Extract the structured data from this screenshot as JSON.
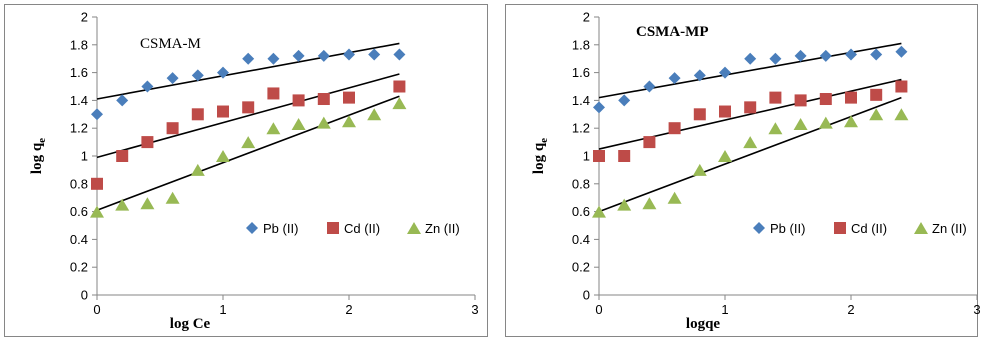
{
  "chart_data": [
    {
      "type": "scatter",
      "title": "CSMA-M",
      "title_bold": false,
      "xlabel": "log Ce",
      "ylabel": "log q",
      "ylabel_sub": "e",
      "xlim": [
        0,
        3
      ],
      "ylim": [
        0,
        2
      ],
      "xticks": [
        "0",
        "1",
        "2",
        "3"
      ],
      "yticks": [
        "0",
        "0.2",
        "0.4",
        "0.6",
        "0.8",
        "1",
        "1.2",
        "1.4",
        "1.6",
        "1.8",
        "2"
      ],
      "grid": false,
      "legend": "center-right",
      "series": [
        {
          "name": "Pb (II)",
          "marker": "diamond",
          "color": "#4a7ebb",
          "x": [
            0,
            0.2,
            0.4,
            0.6,
            0.8,
            1.0,
            1.2,
            1.4,
            1.6,
            1.8,
            2.0,
            2.2,
            2.4
          ],
          "y": [
            1.3,
            1.4,
            1.5,
            1.56,
            1.58,
            1.6,
            1.7,
            1.7,
            1.72,
            1.72,
            1.73,
            1.73,
            1.73
          ],
          "trend": [
            [
              0,
              1.41
            ],
            [
              2.4,
              1.81
            ]
          ]
        },
        {
          "name": "Cd (II)",
          "marker": "square",
          "color": "#be4b48",
          "x": [
            0,
            0.2,
            0.4,
            0.6,
            0.8,
            1.0,
            1.2,
            1.4,
            1.6,
            1.8,
            2.0,
            2.4
          ],
          "y": [
            0.8,
            1.0,
            1.1,
            1.2,
            1.3,
            1.32,
            1.35,
            1.45,
            1.4,
            1.41,
            1.42,
            1.5
          ],
          "trend": [
            [
              0,
              0.99
            ],
            [
              2.4,
              1.59
            ]
          ]
        },
        {
          "name": "Zn (II)",
          "marker": "triangle",
          "color": "#98b954",
          "x": [
            0,
            0.2,
            0.4,
            0.6,
            0.8,
            1.0,
            1.2,
            1.4,
            1.6,
            1.8,
            2.0,
            2.2,
            2.4
          ],
          "y": [
            0.6,
            0.65,
            0.66,
            0.7,
            0.9,
            1.0,
            1.1,
            1.2,
            1.23,
            1.24,
            1.25,
            1.3,
            1.38
          ],
          "trend": [
            [
              0,
              0.61
            ],
            [
              2.4,
              1.43
            ]
          ]
        }
      ]
    },
    {
      "type": "scatter",
      "title": "CSMA-MP",
      "title_bold": true,
      "xlabel": "logq",
      "xlabel_sub": "e",
      "ylabel": "log q",
      "ylabel_sub": "e",
      "xlim": [
        0,
        3
      ],
      "ylim": [
        0,
        2
      ],
      "xticks": [
        "0",
        "1",
        "2",
        "3"
      ],
      "yticks": [
        "0",
        "0.2",
        "0.4",
        "0.6",
        "0.8",
        "1",
        "1.2",
        "1.4",
        "1.6",
        "1.8",
        "2"
      ],
      "grid": false,
      "legend": "center-right",
      "series": [
        {
          "name": "Pb (II)",
          "marker": "diamond",
          "color": "#4a7ebb",
          "x": [
            0,
            0.2,
            0.4,
            0.6,
            0.8,
            1.0,
            1.2,
            1.4,
            1.6,
            1.8,
            2.0,
            2.2,
            2.4
          ],
          "y": [
            1.35,
            1.4,
            1.5,
            1.56,
            1.58,
            1.6,
            1.7,
            1.7,
            1.72,
            1.72,
            1.73,
            1.73,
            1.75
          ],
          "trend": [
            [
              0,
              1.42
            ],
            [
              2.4,
              1.81
            ]
          ]
        },
        {
          "name": "Cd (II)",
          "marker": "square",
          "color": "#be4b48",
          "x": [
            0,
            0.2,
            0.4,
            0.6,
            0.8,
            1.0,
            1.2,
            1.4,
            1.6,
            1.8,
            2.0,
            2.2,
            2.4
          ],
          "y": [
            1.0,
            1.0,
            1.1,
            1.2,
            1.3,
            1.32,
            1.35,
            1.42,
            1.4,
            1.41,
            1.42,
            1.44,
            1.5
          ],
          "trend": [
            [
              0,
              1.05
            ],
            [
              2.4,
              1.55
            ]
          ]
        },
        {
          "name": "Zn (II)",
          "marker": "triangle",
          "color": "#98b954",
          "x": [
            0,
            0.2,
            0.4,
            0.6,
            0.8,
            1.0,
            1.2,
            1.4,
            1.6,
            1.8,
            2.0,
            2.2,
            2.4
          ],
          "y": [
            0.6,
            0.65,
            0.66,
            0.7,
            0.9,
            1.0,
            1.1,
            1.2,
            1.23,
            1.24,
            1.25,
            1.3,
            1.3
          ],
          "trend": [
            [
              0,
              0.6
            ],
            [
              2.4,
              1.42
            ]
          ]
        }
      ]
    }
  ]
}
